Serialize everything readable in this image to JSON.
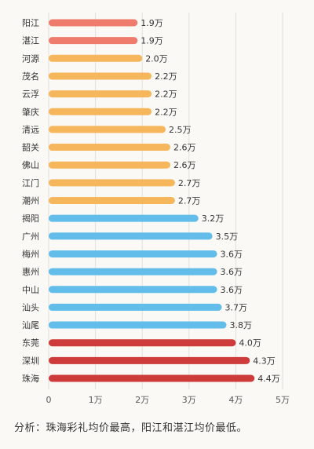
{
  "chart_data": {
    "type": "bar",
    "orientation": "horizontal",
    "categories": [
      "阳江",
      "湛江",
      "河源",
      "茂名",
      "云浮",
      "肇庆",
      "清远",
      "韶关",
      "佛山",
      "江门",
      "潮州",
      "揭阳",
      "广州",
      "梅州",
      "惠州",
      "中山",
      "汕头",
      "汕尾",
      "东莞",
      "深圳",
      "珠海"
    ],
    "values": [
      1.9,
      1.9,
      2.0,
      2.2,
      2.2,
      2.2,
      2.5,
      2.6,
      2.6,
      2.7,
      2.7,
      3.2,
      3.5,
      3.6,
      3.6,
      3.6,
      3.7,
      3.8,
      4.0,
      4.3,
      4.4
    ],
    "value_labels": [
      "1.9万",
      "1.9万",
      "2.0万",
      "2.2万",
      "2.2万",
      "2.2万",
      "2.5万",
      "2.6万",
      "2.6万",
      "2.7万",
      "2.7万",
      "3.2万",
      "3.5万",
      "3.6万",
      "3.6万",
      "3.6万",
      "3.7万",
      "3.8万",
      "4.0万",
      "4.3万",
      "4.4万"
    ],
    "bar_colors": [
      "#ef7b6c",
      "#ef7b6c",
      "#f5b65c",
      "#f5b65c",
      "#f5b65c",
      "#f5b65c",
      "#f5b65c",
      "#f5b65c",
      "#f5b65c",
      "#f5b65c",
      "#f5b65c",
      "#62bdea",
      "#62bdea",
      "#62bdea",
      "#62bdea",
      "#62bdea",
      "#62bdea",
      "#62bdea",
      "#cd3b3a",
      "#cd3b3a",
      "#cd3b3a"
    ],
    "x_ticks": [
      0,
      1,
      2,
      3,
      4,
      5
    ],
    "x_tick_labels": [
      "0",
      "1万",
      "2万",
      "3万",
      "4万",
      "5万"
    ],
    "xlim": [
      0,
      5
    ],
    "grid": "vertical",
    "title": "",
    "xlabel": "",
    "ylabel": ""
  },
  "analysis_text": "分析：珠海彩礼均价最高，阳江和湛江均价最低。"
}
